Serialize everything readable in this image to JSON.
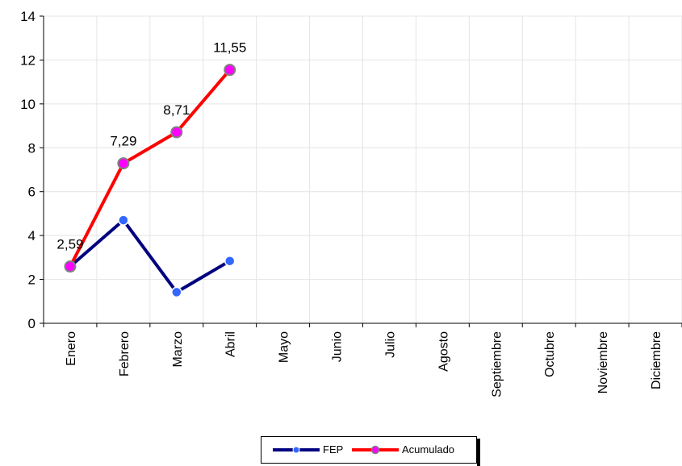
{
  "chart_data": {
    "type": "line",
    "categories": [
      "Enero",
      "Febrero",
      "Marzo",
      "Abril",
      "Mayo",
      "Junio",
      "Julio",
      "Agosto",
      "Septiembre",
      "Octubre",
      "Noviembre",
      "Diciembre"
    ],
    "series": [
      {
        "name": "FEP",
        "values": [
          2.59,
          4.7,
          1.42,
          2.84,
          null,
          null,
          null,
          null,
          null,
          null,
          null,
          null
        ],
        "color": "#000080",
        "marker_color": "#3366ff",
        "labels": null
      },
      {
        "name": "Acumulado",
        "values": [
          2.59,
          7.29,
          8.71,
          11.55,
          null,
          null,
          null,
          null,
          null,
          null,
          null,
          null
        ],
        "color": "#ff0000",
        "marker_color": "#ff00ff",
        "labels": [
          "2,59",
          "7,29",
          "8,71",
          "11,55",
          null,
          null,
          null,
          null,
          null,
          null,
          null,
          null
        ]
      }
    ],
    "ylim": [
      0,
      14
    ],
    "yticks": [
      0,
      2,
      4,
      6,
      8,
      10,
      12,
      14
    ],
    "grid": true,
    "legend_position": "bottom",
    "title": "",
    "xlabel": "",
    "ylabel": ""
  }
}
